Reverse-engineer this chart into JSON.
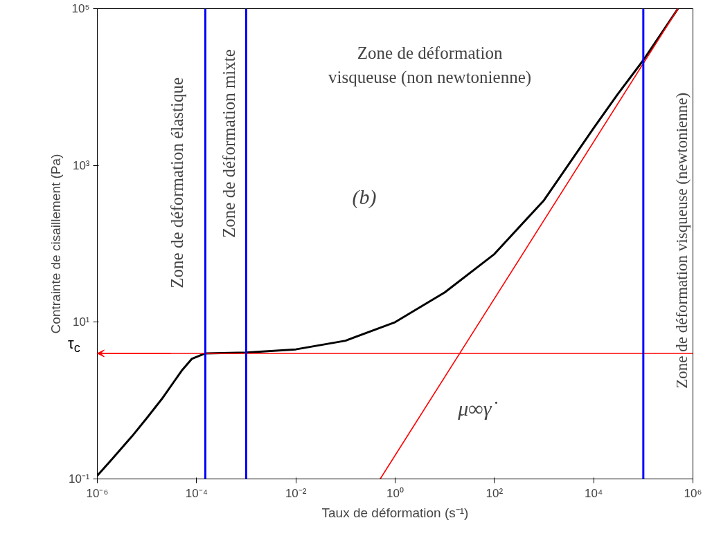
{
  "chart_data": {
    "type": "line",
    "xlabel": "Taux de déformation (s⁻¹)",
    "ylabel": "Contrainte de cisaillement (Pa)",
    "log": "xy",
    "xlim": [
      1e-06,
      1000000.0
    ],
    "ylim": [
      0.1,
      100000
    ],
    "xticks": [
      {
        "value": 1e-06,
        "label": "10⁻⁶"
      },
      {
        "value": 0.0001,
        "label": "10⁻⁴"
      },
      {
        "value": 0.01,
        "label": "10⁻²"
      },
      {
        "value": 1,
        "label": "10⁰"
      },
      {
        "value": 100,
        "label": "10²"
      },
      {
        "value": 10000,
        "label": "10⁴"
      },
      {
        "value": 1000000,
        "label": "10⁶"
      }
    ],
    "yticks": [
      {
        "value": 0.1,
        "label": "10⁻¹"
      },
      {
        "value": 10,
        "label": "10¹"
      },
      {
        "value": 1000,
        "label": "10³"
      },
      {
        "value": 100000,
        "label": "10⁵"
      }
    ],
    "grid": false,
    "marker": "none",
    "line_style": "solid",
    "series": [
      {
        "color": "#000000",
        "x": [
          1e-06,
          2e-06,
          5e-06,
          1e-05,
          2e-05,
          5e-05,
          8e-05,
          0.00015,
          0.001,
          0.01,
          0.1,
          1,
          10,
          100,
          1000,
          10000,
          30000,
          100000,
          500000
        ],
        "values": [
          0.11,
          0.18,
          0.35,
          0.6,
          1.05,
          2.4,
          3.4,
          4,
          4.1,
          4.5,
          5.8,
          10,
          24,
          74,
          360,
          3000,
          8000,
          22000,
          100000
        ]
      },
      {
        "color": "#ff0000",
        "x": [
          0.5,
          500000
        ],
        "values": [
          0.1,
          100000
        ]
      }
    ],
    "ref_lines": [
      {
        "axis": "y",
        "value": 4,
        "label": "τ$_{c}$",
        "color": "#ff0000"
      },
      {
        "axis": "x",
        "value": 0.00015,
        "color": "#0000ff"
      },
      {
        "axis": "x",
        "value": 0.001,
        "color": "#0000ff"
      },
      {
        "axis": "x",
        "value": 100000,
        "color": "#0000ff"
      }
    ],
    "annotations": [
      "Zone de déformation élastique",
      "Zone de déformation mixte",
      "Zone de déformation\nvisqueuse (non newtonienne)",
      "Zone de déformation visqueuse (newtonienne)",
      "(b)",
      "μ∞γ̇"
    ]
  }
}
